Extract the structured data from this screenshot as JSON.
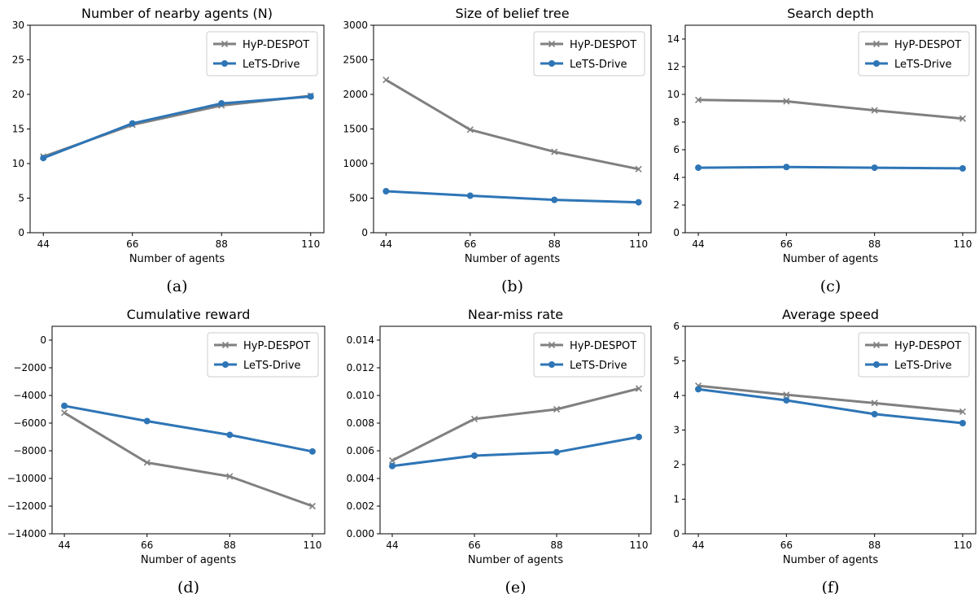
{
  "colors": {
    "hyp": "#808080",
    "lets": "#2e75b6"
  },
  "chart_data": [
    {
      "type": "line",
      "title": "Number of nearby agents (N)",
      "xlabel": "Number of agents",
      "caption": "(a)",
      "x": [
        44,
        66,
        88,
        110
      ],
      "ylim": [
        0,
        30
      ],
      "yticks": [
        0,
        5,
        10,
        15,
        20,
        25,
        30
      ],
      "ytick_labels": [
        "0",
        "5",
        "10",
        "15",
        "20",
        "25",
        "30"
      ],
      "legend": "top-right",
      "series": [
        {
          "name": "HyP-DESPOT",
          "marker": "x",
          "values": [
            11.0,
            15.6,
            18.4,
            19.8
          ]
        },
        {
          "name": "LeTS-Drive",
          "marker": "o",
          "values": [
            10.8,
            15.8,
            18.7,
            19.7
          ]
        }
      ]
    },
    {
      "type": "line",
      "title": "Size of belief tree",
      "xlabel": "Number of agents",
      "caption": "(b)",
      "x": [
        44,
        66,
        88,
        110
      ],
      "ylim": [
        0,
        3000
      ],
      "yticks": [
        0,
        500,
        1000,
        1500,
        2000,
        2500,
        3000
      ],
      "ytick_labels": [
        "0",
        "500",
        "1000",
        "1500",
        "2000",
        "2500",
        "3000"
      ],
      "legend": "top-right",
      "series": [
        {
          "name": "HyP-DESPOT",
          "marker": "x",
          "values": [
            2210,
            1490,
            1170,
            920
          ]
        },
        {
          "name": "LeTS-Drive",
          "marker": "o",
          "values": [
            600,
            535,
            475,
            440
          ]
        }
      ]
    },
    {
      "type": "line",
      "title": "Search depth",
      "xlabel": "Number of agents",
      "caption": "(c)",
      "x": [
        44,
        66,
        88,
        110
      ],
      "ylim": [
        0,
        15
      ],
      "yticks": [
        0,
        2,
        4,
        6,
        8,
        10,
        12,
        14
      ],
      "ytick_labels": [
        "0",
        "2",
        "4",
        "6",
        "8",
        "10",
        "12",
        "14"
      ],
      "legend": "top-right",
      "series": [
        {
          "name": "HyP-DESPOT",
          "marker": "x",
          "values": [
            9.6,
            9.5,
            8.85,
            8.25
          ]
        },
        {
          "name": "LeTS-Drive",
          "marker": "o",
          "values": [
            4.7,
            4.75,
            4.7,
            4.65
          ]
        }
      ]
    },
    {
      "type": "line",
      "title": "Cumulative reward",
      "xlabel": "Number of agents",
      "caption": "(d)",
      "x": [
        44,
        66,
        88,
        110
      ],
      "ylim": [
        -14000,
        1000
      ],
      "yticks": [
        0,
        -2000,
        -4000,
        -6000,
        -8000,
        -10000,
        -12000,
        -14000
      ],
      "ytick_labels": [
        "0",
        "−2000",
        "−4000",
        "−6000",
        "−8000",
        "−10000",
        "−12000",
        "−14000"
      ],
      "legend": "top-right",
      "series": [
        {
          "name": "HyP-DESPOT",
          "marker": "x",
          "values": [
            -5250,
            -8850,
            -9850,
            -12000
          ]
        },
        {
          "name": "LeTS-Drive",
          "marker": "o",
          "values": [
            -4750,
            -5850,
            -6850,
            -8050
          ]
        }
      ]
    },
    {
      "type": "line",
      "title": "Near-miss rate",
      "xlabel": "Number of agents",
      "caption": "(e)",
      "x": [
        44,
        66,
        88,
        110
      ],
      "ylim": [
        0,
        0.015
      ],
      "yticks": [
        0,
        0.002,
        0.004,
        0.006,
        0.008,
        0.01,
        0.012,
        0.014
      ],
      "ytick_labels": [
        "0.000",
        "0.002",
        "0.004",
        "0.006",
        "0.008",
        "0.010",
        "0.012",
        "0.014"
      ],
      "legend": "top-right",
      "series": [
        {
          "name": "HyP-DESPOT",
          "marker": "x",
          "values": [
            0.0053,
            0.0083,
            0.009,
            0.0105
          ]
        },
        {
          "name": "LeTS-Drive",
          "marker": "o",
          "values": [
            0.0049,
            0.00565,
            0.0059,
            0.007
          ]
        }
      ]
    },
    {
      "type": "line",
      "title": "Average speed",
      "xlabel": "Number of agents",
      "caption": "(f)",
      "x": [
        44,
        66,
        88,
        110
      ],
      "ylim": [
        0,
        6
      ],
      "yticks": [
        0,
        1,
        2,
        3,
        4,
        5,
        6
      ],
      "ytick_labels": [
        "0",
        "1",
        "2",
        "3",
        "4",
        "5",
        "6"
      ],
      "legend": "top-right",
      "series": [
        {
          "name": "HyP-DESPOT",
          "marker": "x",
          "values": [
            4.28,
            4.02,
            3.78,
            3.53
          ]
        },
        {
          "name": "LeTS-Drive",
          "marker": "o",
          "values": [
            4.18,
            3.86,
            3.46,
            3.2
          ]
        }
      ]
    }
  ]
}
